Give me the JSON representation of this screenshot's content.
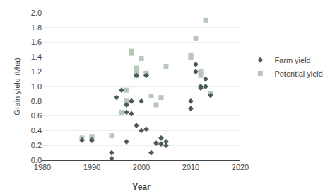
{
  "chart_data": {
    "type": "scatter",
    "x_label": "Year",
    "y_label": "Grain yield (t/ha)",
    "series": [
      {
        "name": "Potential yield",
        "color": "#b8c8b8",
        "marker": "square",
        "x": [
          1988,
          1990,
          1990,
          1994,
          1996,
          1997,
          1997,
          1997,
          1998,
          1998,
          1999,
          1999,
          1999,
          2000,
          2001,
          2001,
          2002,
          2003,
          2004,
          2005,
          2010,
          2010,
          2011,
          2012,
          2012,
          2013,
          2014
        ],
        "values": [
          0.3,
          0.3,
          0.32,
          0.33,
          0.65,
          0.8,
          0.78,
          0.95,
          1.45,
          1.48,
          1.25,
          1.2,
          1.15,
          1.38,
          1.18,
          1.17,
          0.87,
          0.75,
          0.85,
          1.27,
          1.4,
          1.42,
          1.65,
          1.2,
          1.15,
          1.9,
          0.9
        ]
      },
      {
        "name": "Farm yield",
        "color": "#4a5a58",
        "marker": "diamond",
        "x": [
          1988,
          1990,
          1990,
          1994,
          1994,
          1995,
          1996,
          1997,
          1997,
          1997,
          1998,
          1998,
          1998,
          1999,
          1999,
          2000,
          2000,
          2001,
          2001,
          2002,
          2003,
          2004,
          2004,
          2005,
          2005,
          2010,
          2010,
          2011,
          2011,
          2012,
          2012,
          2013,
          2013,
          2014
        ],
        "values": [
          0.27,
          0.27,
          0.27,
          0.1,
          0.02,
          0.85,
          0.95,
          0.25,
          0.65,
          0.75,
          0.63,
          0.8,
          0.8,
          0.47,
          1.15,
          0.4,
          0.8,
          0.42,
          1.15,
          0.1,
          0.23,
          0.22,
          0.3,
          0.25,
          0.2,
          0.7,
          0.8,
          1.2,
          1.3,
          0.98,
          1.0,
          1.1,
          1.0,
          0.88
        ]
      }
    ],
    "xlim": [
      1980,
      2020
    ],
    "xticks": [
      1980,
      1990,
      2000,
      2010,
      2020
    ],
    "ylim": [
      0,
      2.0
    ],
    "yticks": [
      {
        "value": 0,
        "label": "0.0"
      },
      0.2,
      0.4,
      0.6,
      0.8,
      {
        "value": 1.0,
        "label": "1.0"
      },
      1.2,
      1.4,
      1.6,
      1.8,
      {
        "value": 2.0,
        "label": "2.0"
      }
    ],
    "grid": "y",
    "legend": "right"
  }
}
